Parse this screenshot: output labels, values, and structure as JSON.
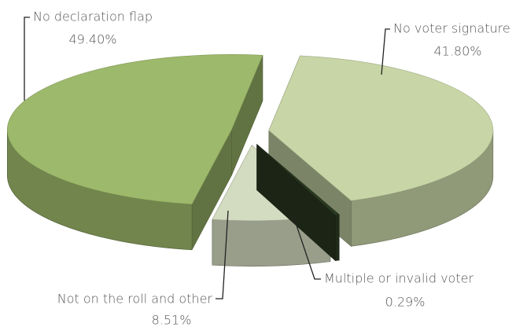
{
  "chart_data": {
    "type": "pie",
    "categories": [
      "No declaration flap",
      "No voter signature",
      "Multiple or invalid voter",
      "Not on the roll and other"
    ],
    "values": [
      49.4,
      41.8,
      0.29,
      8.51
    ],
    "value_labels": [
      "49.40%",
      "41.80%",
      "0.29%",
      "8.51%"
    ],
    "colors": [
      "#9db96b",
      "#c8d5a6",
      "#2b3a22",
      "#d3dbc0"
    ]
  }
}
